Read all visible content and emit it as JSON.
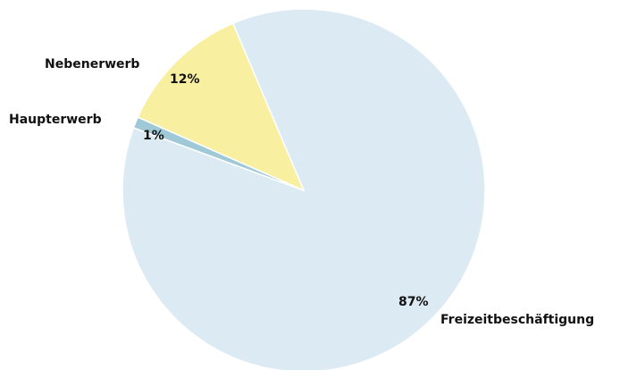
{
  "chart_data": {
    "type": "pie",
    "categories": [
      "Freizeitbeschäftigung",
      "Haupterwerb",
      "Nebenerwerb"
    ],
    "values": [
      87,
      1,
      12
    ],
    "value_labels": [
      "87%",
      "1%",
      "12%"
    ],
    "colors": [
      "#dcebf3",
      "#9fc9d6",
      "#f8f0a0"
    ]
  }
}
